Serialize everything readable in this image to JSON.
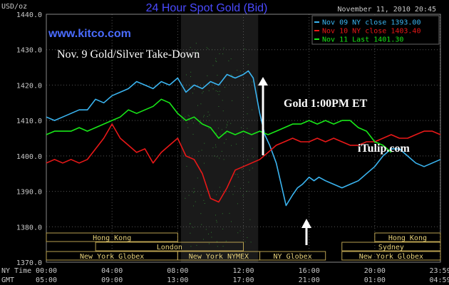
{
  "chart_data": {
    "type": "line",
    "title": "24 Hour Spot Gold (Bid)",
    "ylabel": "USD/oz",
    "timestamp": "November 11, 2010 20:45",
    "ylim": [
      1370,
      1440
    ],
    "yticks": [
      "1440.0",
      "1430.0",
      "1420.0",
      "1410.0",
      "1400.0",
      "1390.0",
      "1380.0",
      "1370.0"
    ],
    "xlim": [
      0,
      24
    ],
    "ny_time_label": "NY Time",
    "gmt_label": "GMT",
    "ny_ticks": [
      "00:00",
      "04:00",
      "08:00",
      "12:00",
      "16:00",
      "20:00",
      "23:59"
    ],
    "gmt_ticks": [
      "05:00",
      "09:00",
      "13:00",
      "17:00",
      "21:00",
      "01:00",
      "04:59"
    ],
    "tick_hours": [
      0,
      4,
      8,
      12,
      16,
      20,
      23.98
    ],
    "site_label": "www.kitco.com",
    "annotations": {
      "takedown": "Nov. 9 Gold/Silver Take-Down",
      "gold_time": "Gold 1:00PM ET",
      "itulip": "iTulip.com"
    },
    "series": [
      {
        "name": "Nov 09 NY close 1393.00",
        "color": "#3ab4f0",
        "x": [
          0,
          0.5,
          1,
          1.5,
          2,
          2.5,
          3,
          3.5,
          4,
          4.5,
          5,
          5.5,
          6,
          6.5,
          7,
          7.5,
          8,
          8.5,
          9,
          9.5,
          10,
          10.5,
          11,
          11.5,
          12,
          12.3,
          12.6,
          13,
          13.3,
          13.6,
          14,
          14.3,
          14.6,
          15,
          15.3,
          15.6,
          15.8,
          16,
          16.3,
          16.6,
          17,
          17.5,
          18,
          18.5,
          19,
          19.5,
          20,
          20.5,
          21,
          21.5,
          22,
          22.5,
          23,
          23.5,
          24
        ],
        "values": [
          1411,
          1410,
          1411,
          1412,
          1413,
          1413,
          1416,
          1415,
          1417,
          1418,
          1419,
          1421,
          1420,
          1419,
          1421,
          1420,
          1422,
          1418,
          1420,
          1419,
          1421,
          1420,
          1423,
          1422,
          1423,
          1424,
          1422,
          1412,
          1406,
          1403,
          1398,
          1392,
          1386,
          1389,
          1391,
          1392,
          1393,
          1394,
          1393,
          1394,
          1393,
          1392,
          1391,
          1392,
          1393,
          1395,
          1397,
          1400,
          1402,
          1402,
          1400,
          1398,
          1397,
          1398,
          1399
        ]
      },
      {
        "name": "Nov 10 NY close 1403.40",
        "color": "#e81818",
        "x": [
          0,
          0.5,
          1,
          1.5,
          2,
          2.5,
          3,
          3.5,
          4,
          4.5,
          5,
          5.5,
          6,
          6.5,
          7,
          7.5,
          8,
          8.5,
          9,
          9.5,
          10,
          10.5,
          11,
          11.5,
          12,
          12.5,
          13,
          13.5,
          14,
          14.5,
          15,
          15.5,
          16,
          16.5,
          17,
          17.5,
          18,
          18.5,
          19,
          19.5,
          20,
          20.5,
          21,
          21.5,
          22,
          22.5,
          23,
          23.5,
          24
        ],
        "values": [
          1398,
          1399,
          1398,
          1399,
          1398,
          1399,
          1402,
          1405,
          1409,
          1405,
          1403,
          1401,
          1402,
          1398,
          1401,
          1403,
          1405,
          1400,
          1399,
          1395,
          1388,
          1387,
          1391,
          1396,
          1397,
          1398,
          1399,
          1401,
          1403,
          1404,
          1405,
          1404,
          1404,
          1405,
          1404,
          1405,
          1404,
          1403,
          1403,
          1404,
          1404,
          1405,
          1406,
          1405,
          1405,
          1406,
          1407,
          1407,
          1406
        ]
      },
      {
        "name": "Nov 11 Last 1401.30",
        "color": "#18e818",
        "x": [
          0,
          0.5,
          1,
          1.5,
          2,
          2.5,
          3,
          3.5,
          4,
          4.5,
          5,
          5.5,
          6,
          6.5,
          7,
          7.5,
          8,
          8.5,
          9,
          9.5,
          10,
          10.5,
          11,
          11.5,
          12,
          12.5,
          13,
          13.5,
          14,
          14.5,
          15,
          15.5,
          16,
          16.5,
          17,
          17.5,
          18,
          18.5,
          19,
          19.5,
          20,
          20.5,
          21
        ],
        "values": [
          1406,
          1407,
          1407,
          1407,
          1408,
          1407,
          1408,
          1409,
          1410,
          1411,
          1413,
          1412,
          1413,
          1414,
          1416,
          1415,
          1412,
          1410,
          1411,
          1409,
          1408,
          1405,
          1407,
          1406,
          1407,
          1406,
          1407,
          1406,
          1407,
          1408,
          1409,
          1409,
          1410,
          1409,
          1410,
          1409,
          1410,
          1410,
          1408,
          1407,
          1404,
          1403,
          1401
        ]
      }
    ],
    "sessions": [
      {
        "label": "Hong Kong",
        "row": 0,
        "from": 0,
        "to": 8
      },
      {
        "label": "London",
        "row": 1,
        "from": 3,
        "to": 12
      },
      {
        "label": "New York Globex",
        "row": 2,
        "from": 0,
        "to": 8
      },
      {
        "label": "New York NYMEX",
        "row": 2,
        "from": 8,
        "to": 13
      },
      {
        "label": "NY Globex",
        "row": 2,
        "from": 13,
        "to": 17
      },
      {
        "label": "Hong Kong",
        "row": 0,
        "from": 20,
        "to": 24
      },
      {
        "label": "Sydney",
        "row": 1,
        "from": 18,
        "to": 24
      },
      {
        "label": "New York Globex",
        "row": 2,
        "from": 18,
        "to": 24
      }
    ],
    "grid": true
  }
}
